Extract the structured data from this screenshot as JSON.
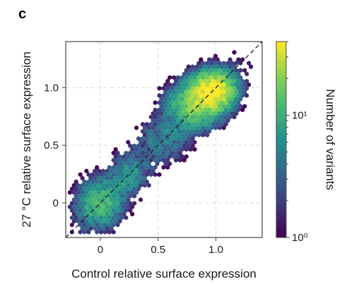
{
  "panel_label": "c",
  "chart_data": {
    "type": "heatmap",
    "subtype": "hexbin",
    "xlabel": "Control relative surface expression",
    "ylabel": "27 °C relative surface expression",
    "xlim": [
      -0.3,
      1.4
    ],
    "ylim": [
      -0.3,
      1.4
    ],
    "x_ticks": [
      0,
      0.5,
      1.0
    ],
    "x_tick_labels": [
      "0",
      "0.5",
      "1.0"
    ],
    "y_ticks": [
      0,
      0.5,
      1.0
    ],
    "y_tick_labels": [
      "0",
      "0.5",
      "1.0"
    ],
    "grid": true,
    "diagonal_reference": true,
    "colorbar": {
      "label": "Number of variants",
      "scale": "log",
      "range": [
        1,
        40
      ],
      "ticks": [
        1,
        10
      ],
      "tick_labels": [
        "10⁰",
        "10¹"
      ],
      "colors": [
        "#440154",
        "#3b528b",
        "#21908d",
        "#5dc963",
        "#fde725"
      ]
    },
    "density_components": [
      {
        "cx": 0.0,
        "cy": 0.0,
        "sx": 0.12,
        "sy": 0.13,
        "peak": 12
      },
      {
        "cx": 0.25,
        "cy": 0.25,
        "sx": 0.1,
        "sy": 0.12,
        "peak": 6
      },
      {
        "cx": 0.55,
        "cy": 0.55,
        "sx": 0.15,
        "sy": 0.13,
        "peak": 4
      },
      {
        "cx": 0.82,
        "cy": 0.85,
        "sx": 0.14,
        "sy": 0.12,
        "peak": 18
      },
      {
        "cx": 0.98,
        "cy": 0.98,
        "sx": 0.11,
        "sy": 0.1,
        "peak": 38
      }
    ]
  }
}
